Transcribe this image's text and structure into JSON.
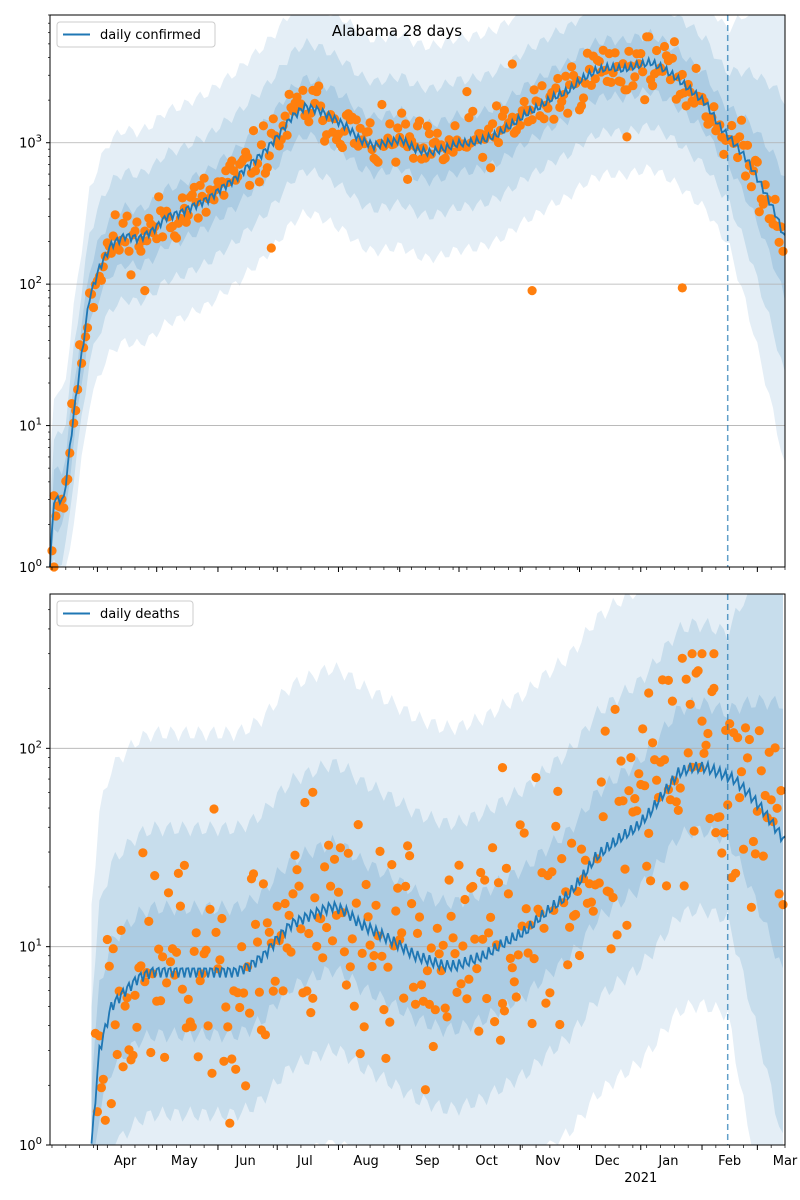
{
  "figure": {
    "title": "Alabama 28 days"
  },
  "colors": {
    "line": "#1f77b4",
    "dots": "#ff7f0e",
    "band": "#1f77b4",
    "grid": "#b0b0b0",
    "vline": "#1f77b4"
  },
  "x_ticks": {
    "labels": [
      "Apr",
      "May",
      "Jun",
      "Jul",
      "Aug",
      "Sep",
      "Oct",
      "Nov",
      "Dec",
      "Jan",
      "Feb",
      "Mar"
    ],
    "year_label": "2021"
  },
  "chart_data": [
    {
      "type": "line",
      "title": "Alabama 28 days",
      "scale": "log",
      "ylim": [
        1,
        8000
      ],
      "yticks": [
        1,
        10,
        100,
        1000
      ],
      "ytick_labels": [
        "10^0",
        "10^1",
        "10^2",
        "10^3"
      ],
      "legend": "top-left",
      "grid": "horizontal",
      "x_start": "2020-03-08",
      "x_end": "2021-03-15",
      "forecast_start": "2021-02-14",
      "series": [
        {
          "name": "daily confirmed",
          "kind": "line",
          "points": [
            [
              "2020-03-08",
              1
            ],
            [
              "2020-03-10",
              3
            ],
            [
              "2020-03-15",
              3
            ],
            [
              "2020-03-20",
              12
            ],
            [
              "2020-03-25",
              40
            ],
            [
              "2020-03-28",
              80
            ],
            [
              "2020-04-02",
              130
            ],
            [
              "2020-04-08",
              190
            ],
            [
              "2020-04-15",
              220
            ],
            [
              "2020-04-22",
              210
            ],
            [
              "2020-04-29",
              240
            ],
            [
              "2020-05-06",
              300
            ],
            [
              "2020-05-13",
              320
            ],
            [
              "2020-05-20",
              360
            ],
            [
              "2020-05-27",
              400
            ],
            [
              "2020-06-03",
              480
            ],
            [
              "2020-06-10",
              560
            ],
            [
              "2020-06-17",
              700
            ],
            [
              "2020-06-24",
              850
            ],
            [
              "2020-07-01",
              1100
            ],
            [
              "2020-07-08",
              1500
            ],
            [
              "2020-07-15",
              1800
            ],
            [
              "2020-07-22",
              1700
            ],
            [
              "2020-07-29",
              1500
            ],
            [
              "2020-08-05",
              1300
            ],
            [
              "2020-08-12",
              1050
            ],
            [
              "2020-08-19",
              950
            ],
            [
              "2020-08-26",
              1000
            ],
            [
              "2020-09-02",
              1050
            ],
            [
              "2020-09-09",
              900
            ],
            [
              "2020-09-16",
              850
            ],
            [
              "2020-09-23",
              900
            ],
            [
              "2020-09-30",
              980
            ],
            [
              "2020-10-07",
              1000
            ],
            [
              "2020-10-14",
              1050
            ],
            [
              "2020-10-21",
              1150
            ],
            [
              "2020-10-28",
              1350
            ],
            [
              "2020-11-04",
              1600
            ],
            [
              "2020-11-11",
              1800
            ],
            [
              "2020-11-18",
              2100
            ],
            [
              "2020-11-25",
              2300
            ],
            [
              "2020-12-02",
              2800
            ],
            [
              "2020-12-09",
              3200
            ],
            [
              "2020-12-16",
              3400
            ],
            [
              "2020-12-23",
              3300
            ],
            [
              "2020-12-30",
              3500
            ],
            [
              "2021-01-06",
              3700
            ],
            [
              "2021-01-13",
              3300
            ],
            [
              "2021-01-20",
              2800
            ],
            [
              "2021-01-27",
              2300
            ],
            [
              "2021-02-03",
              1900
            ],
            [
              "2021-02-10",
              1300
            ],
            [
              "2021-02-17",
              1000
            ],
            [
              "2021-02-24",
              750
            ],
            [
              "2021-03-03",
              500
            ],
            [
              "2021-03-10",
              320
            ],
            [
              "2021-03-15",
              210
            ]
          ]
        },
        {
          "name": "",
          "kind": "scatter",
          "seed": 11,
          "outliers": [
            [
              "2020-03-10",
              1
            ],
            [
              "2020-06-28",
              180
            ],
            [
              "2020-09-05",
              550
            ],
            [
              "2020-10-05",
              2300
            ],
            [
              "2020-10-28",
              3600
            ],
            [
              "2020-11-07",
              90
            ],
            [
              "2021-01-22",
              94
            ],
            [
              "2020-12-25",
              1100
            ],
            [
              "2020-04-25",
              90
            ]
          ]
        }
      ]
    },
    {
      "type": "line",
      "scale": "log",
      "ylim": [
        1,
        600
      ],
      "yticks": [
        1,
        10,
        100
      ],
      "ytick_labels": [
        "10^0",
        "10^1",
        "10^2"
      ],
      "legend": "top-left",
      "grid": "horizontal",
      "x_start": "2020-03-08",
      "x_end": "2021-03-15",
      "forecast_start": "2021-02-14",
      "series": [
        {
          "name": "daily deaths",
          "kind": "line",
          "points": [
            [
              "2020-03-29",
              1
            ],
            [
              "2020-04-02",
              3
            ],
            [
              "2020-04-08",
              5
            ],
            [
              "2020-04-15",
              6
            ],
            [
              "2020-04-22",
              7
            ],
            [
              "2020-04-29",
              7.5
            ],
            [
              "2020-05-06",
              7.5
            ],
            [
              "2020-05-13",
              7.5
            ],
            [
              "2020-05-20",
              7.5
            ],
            [
              "2020-05-27",
              7.5
            ],
            [
              "2020-06-03",
              7.5
            ],
            [
              "2020-06-10",
              7.5
            ],
            [
              "2020-06-17",
              8
            ],
            [
              "2020-06-24",
              9
            ],
            [
              "2020-07-01",
              11
            ],
            [
              "2020-07-08",
              13
            ],
            [
              "2020-07-15",
              14
            ],
            [
              "2020-07-22",
              15
            ],
            [
              "2020-07-29",
              16
            ],
            [
              "2020-08-05",
              15
            ],
            [
              "2020-08-12",
              13
            ],
            [
              "2020-08-19",
              12
            ],
            [
              "2020-08-26",
              11
            ],
            [
              "2020-09-02",
              10
            ],
            [
              "2020-09-09",
              9
            ],
            [
              "2020-09-16",
              8.5
            ],
            [
              "2020-09-23",
              8
            ],
            [
              "2020-09-30",
              8
            ],
            [
              "2020-10-07",
              8.5
            ],
            [
              "2020-10-14",
              9
            ],
            [
              "2020-10-21",
              10
            ],
            [
              "2020-10-28",
              11
            ],
            [
              "2020-11-04",
              12
            ],
            [
              "2020-11-11",
              14
            ],
            [
              "2020-11-18",
              16
            ],
            [
              "2020-11-25",
              18
            ],
            [
              "2020-12-02",
              22
            ],
            [
              "2020-12-09",
              28
            ],
            [
              "2020-12-16",
              32
            ],
            [
              "2020-12-23",
              36
            ],
            [
              "2020-12-30",
              40
            ],
            [
              "2021-01-06",
              48
            ],
            [
              "2021-01-13",
              60
            ],
            [
              "2021-01-20",
              75
            ],
            [
              "2021-01-27",
              80
            ],
            [
              "2021-02-03",
              80
            ],
            [
              "2021-02-10",
              75
            ],
            [
              "2021-02-17",
              70
            ],
            [
              "2021-02-24",
              60
            ],
            [
              "2021-03-03",
              50
            ],
            [
              "2021-03-10",
              40
            ],
            [
              "2021-03-15",
              34
            ]
          ]
        },
        {
          "name": "",
          "kind": "scatter",
          "seed": 23,
          "outliers": [
            [
              "2021-01-27",
              300
            ],
            [
              "2021-02-01",
              300
            ],
            [
              "2021-02-07",
              300
            ],
            [
              "2021-01-15",
              220
            ],
            [
              "2021-01-05",
              190
            ],
            [
              "2020-07-19",
              60
            ],
            [
              "2020-10-23",
              80
            ]
          ]
        }
      ]
    }
  ]
}
